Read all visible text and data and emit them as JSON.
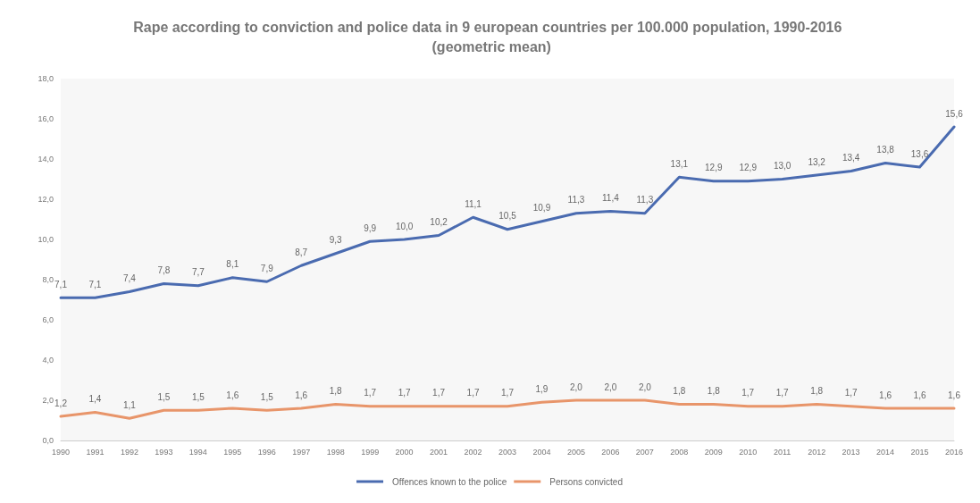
{
  "chart_data": {
    "type": "line",
    "title": "Rape according to conviction and police data in 9 european countries per 100.000 population, 1990-2016  (geometric mean)",
    "categories": [
      "1990",
      "1991",
      "1992",
      "1993",
      "1994",
      "1995",
      "1996",
      "1997",
      "1998",
      "1999",
      "2000",
      "2001",
      "2002",
      "2003",
      "2004",
      "2005",
      "2006",
      "2007",
      "2008",
      "2009",
      "2010",
      "2011",
      "2012",
      "2013",
      "2014",
      "2015",
      "2016"
    ],
    "series": [
      {
        "name": "Offences known to the police",
        "color": "#4a6bb0",
        "values": [
          7.1,
          7.1,
          7.4,
          7.8,
          7.7,
          8.1,
          7.9,
          8.7,
          9.3,
          9.9,
          10.0,
          10.2,
          11.1,
          10.5,
          10.9,
          11.3,
          11.4,
          11.3,
          13.1,
          12.9,
          12.9,
          13.0,
          13.2,
          13.4,
          13.8,
          13.6,
          15.6
        ],
        "value_labels": [
          "7,1",
          "7,1",
          "7,4",
          "7,8",
          "7,7",
          "8,1",
          "7,9",
          "8,7",
          "9,3",
          "9,9",
          "10,0",
          "10,2",
          "11,1",
          "10,5",
          "10,9",
          "11,3",
          "11,4",
          "11,3",
          "13,1",
          "12,9",
          "12,9",
          "13,0",
          "13,2",
          "13,4",
          "13,8",
          "13,6",
          "15,6"
        ]
      },
      {
        "name": "Persons convicted",
        "color": "#e8956a",
        "values": [
          1.2,
          1.4,
          1.1,
          1.5,
          1.5,
          1.6,
          1.5,
          1.6,
          1.8,
          1.7,
          1.7,
          1.7,
          1.7,
          1.7,
          1.9,
          2.0,
          2.0,
          2.0,
          1.8,
          1.8,
          1.7,
          1.7,
          1.8,
          1.7,
          1.6,
          1.6,
          1.6
        ],
        "value_labels": [
          "1,2",
          "1,4",
          "1,1",
          "1,5",
          "1,5",
          "1,6",
          "1,5",
          "1,6",
          "1,8",
          "1,7",
          "1,7",
          "1,7",
          "1,7",
          "1,7",
          "1,9",
          "2,0",
          "2,0",
          "2,0",
          "1,8",
          "1,8",
          "1,7",
          "1,7",
          "1,8",
          "1,7",
          "1,6",
          "1,6",
          "1,6"
        ]
      }
    ],
    "ylim": [
      0,
      18
    ],
    "yticks": [
      {
        "value": 0,
        "label": "0,0"
      },
      {
        "value": 2,
        "label": "2,0"
      },
      {
        "value": 4,
        "label": "4,0"
      },
      {
        "value": 6,
        "label": "6,0"
      },
      {
        "value": 8,
        "label": "8,0"
      },
      {
        "value": 10,
        "label": "10,0"
      },
      {
        "value": 12,
        "label": "12,0"
      },
      {
        "value": 14,
        "label": "14,0"
      },
      {
        "value": 16,
        "label": "16,0"
      },
      {
        "value": 18,
        "label": "18,0"
      }
    ],
    "grid": false,
    "legend": "bottom",
    "marker": "none",
    "line_style": "solid"
  }
}
